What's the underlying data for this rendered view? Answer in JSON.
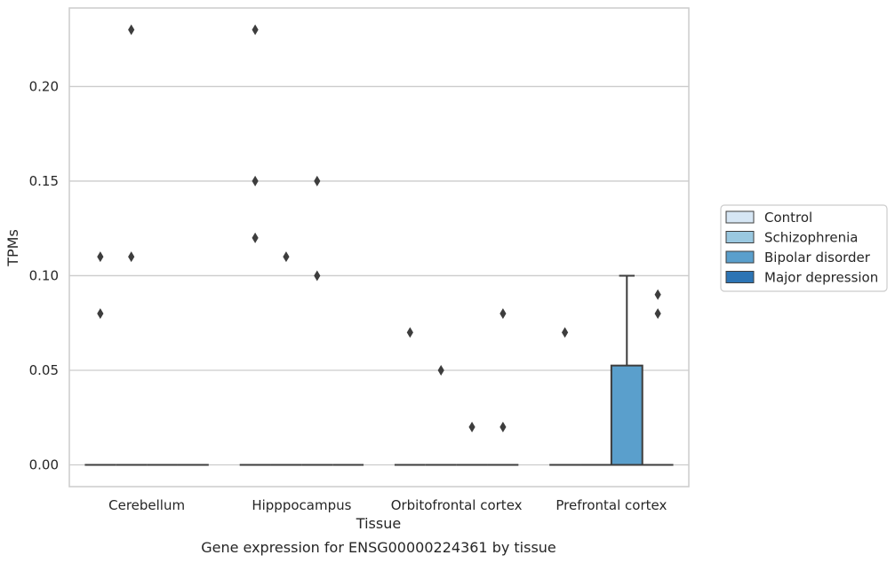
{
  "chart_data": {
    "type": "box",
    "title": "",
    "caption": "Gene expression for ENSG00000224361 by tissue",
    "xlabel": "Tissue",
    "ylabel": "TPMs",
    "ylim": [
      -0.0115,
      0.2415
    ],
    "yticks": [
      "0.00",
      "0.05",
      "0.10",
      "0.15",
      "0.20"
    ],
    "ytick_values": [
      0,
      0.05,
      0.1,
      0.15,
      0.2
    ],
    "grid": "horizontal",
    "legend_position": "right",
    "categories": [
      "Cerebellum",
      "Hipppocampus",
      "Orbitofrontal cortex",
      "Prefrontal cortex"
    ],
    "series": [
      {
        "name": "Control",
        "color": "#d6e6f4"
      },
      {
        "name": "Schizophrenia",
        "color": "#9ac8e0"
      },
      {
        "name": "Bipolar disorder",
        "color": "#5a9fcc"
      },
      {
        "name": "Major depression",
        "color": "#2c74b4"
      }
    ],
    "boxes": [
      {
        "category": 0,
        "series": 0,
        "q1": 0,
        "median": 0,
        "q3": 0,
        "whisker_low": 0,
        "whisker_high": 0,
        "outliers": [
          0.08,
          0.11
        ]
      },
      {
        "category": 0,
        "series": 1,
        "q1": 0,
        "median": 0,
        "q3": 0,
        "whisker_low": 0,
        "whisker_high": 0,
        "outliers": [
          0.11,
          0.23
        ]
      },
      {
        "category": 0,
        "series": 2,
        "q1": 0,
        "median": 0,
        "q3": 0,
        "whisker_low": 0,
        "whisker_high": 0,
        "outliers": []
      },
      {
        "category": 0,
        "series": 3,
        "q1": 0,
        "median": 0,
        "q3": 0,
        "whisker_low": 0,
        "whisker_high": 0,
        "outliers": []
      },
      {
        "category": 1,
        "series": 0,
        "q1": 0,
        "median": 0,
        "q3": 0,
        "whisker_low": 0,
        "whisker_high": 0,
        "outliers": [
          0.12,
          0.15,
          0.23
        ]
      },
      {
        "category": 1,
        "series": 1,
        "q1": 0,
        "median": 0,
        "q3": 0,
        "whisker_low": 0,
        "whisker_high": 0,
        "outliers": [
          0.11
        ]
      },
      {
        "category": 1,
        "series": 2,
        "q1": 0,
        "median": 0,
        "q3": 0,
        "whisker_low": 0,
        "whisker_high": 0,
        "outliers": [
          0.1,
          0.15
        ]
      },
      {
        "category": 1,
        "series": 3,
        "q1": 0,
        "median": 0,
        "q3": 0,
        "whisker_low": 0,
        "whisker_high": 0,
        "outliers": []
      },
      {
        "category": 2,
        "series": 0,
        "q1": 0,
        "median": 0,
        "q3": 0,
        "whisker_low": 0,
        "whisker_high": 0,
        "outliers": [
          0.07
        ]
      },
      {
        "category": 2,
        "series": 1,
        "q1": 0,
        "median": 0,
        "q3": 0,
        "whisker_low": 0,
        "whisker_high": 0,
        "outliers": [
          0.05
        ]
      },
      {
        "category": 2,
        "series": 2,
        "q1": 0,
        "median": 0,
        "q3": 0,
        "whisker_low": 0,
        "whisker_high": 0,
        "outliers": [
          0.02
        ]
      },
      {
        "category": 2,
        "series": 3,
        "q1": 0,
        "median": 0,
        "q3": 0,
        "whisker_low": 0,
        "whisker_high": 0,
        "outliers": [
          0.02,
          0.08
        ]
      },
      {
        "category": 3,
        "series": 0,
        "q1": 0,
        "median": 0,
        "q3": 0,
        "whisker_low": 0,
        "whisker_high": 0,
        "outliers": [
          0.07
        ]
      },
      {
        "category": 3,
        "series": 1,
        "q1": 0,
        "median": 0,
        "q3": 0,
        "whisker_low": 0,
        "whisker_high": 0,
        "outliers": []
      },
      {
        "category": 3,
        "series": 2,
        "q1": 0,
        "median": 0,
        "q3": 0.0525,
        "whisker_low": 0,
        "whisker_high": 0.1,
        "outliers": []
      },
      {
        "category": 3,
        "series": 3,
        "q1": 0,
        "median": 0,
        "q3": 0,
        "whisker_low": 0,
        "whisker_high": 0,
        "outliers": [
          0.08,
          0.09
        ]
      }
    ]
  }
}
